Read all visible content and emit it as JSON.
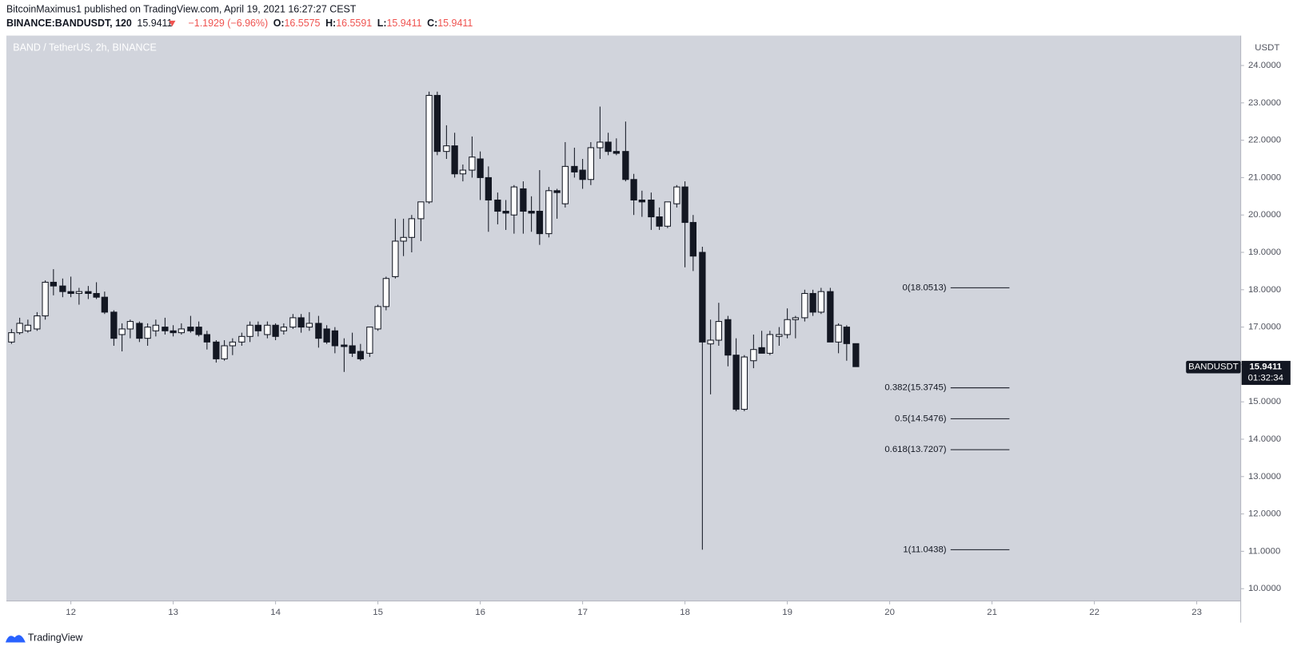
{
  "header": {
    "published": "BitcoinMaximus1 published on TradingView.com, April 19, 2021 16:27:27 CEST",
    "symbol": "BINANCE:BANDUSDT, 120",
    "change": "−1.1929 (−6.96%)",
    "o": "O:",
    "h": "H:",
    "l": "L:",
    "c": "C:"
  },
  "footer": {
    "brand": "TradingView"
  },
  "chart_data": {
    "type": "candlestick",
    "title": "BAND / TetherUS, 2h, BINANCE",
    "y_axis_label": "USDT",
    "ticker": "BANDUSDT",
    "countdown": "01:32:34",
    "xlim": [
      11.37,
      23.43
    ],
    "xticks": [
      12,
      13,
      14,
      15,
      16,
      17,
      18,
      19,
      20,
      21,
      22,
      23
    ],
    "ylim": [
      9.67,
      24.8
    ],
    "yticks": [
      {
        "value": 10,
        "label": "10.0000"
      },
      {
        "value": 11,
        "label": "11.0000"
      },
      {
        "value": 12,
        "label": "12.0000"
      },
      {
        "value": 13,
        "label": "13.0000"
      },
      {
        "value": 14,
        "label": "14.0000"
      },
      {
        "value": 15,
        "label": "15.0000"
      },
      {
        "value": 16,
        "label": "16.0000"
      },
      {
        "value": 17,
        "label": "17.0000"
      },
      {
        "value": 18,
        "label": "18.0000"
      },
      {
        "value": 19,
        "label": "19.0000"
      },
      {
        "value": 20,
        "label": "20.0000"
      },
      {
        "value": 21,
        "label": "21.0000"
      },
      {
        "value": 22,
        "label": "22.0000"
      },
      {
        "value": 23,
        "label": "23.0000"
      },
      {
        "value": 24,
        "label": "24.0000"
      }
    ],
    "up_color": "#ffffff",
    "down_color": "#131722",
    "fib_levels": [
      {
        "value": 18.0513,
        "label": "0(18.0513)"
      },
      {
        "value": 15.3745,
        "label": "0.382(15.3745)"
      },
      {
        "value": 14.5476,
        "label": "0.5(14.5476)"
      },
      {
        "value": 13.7207,
        "label": "0.618(13.7207)"
      },
      {
        "value": 11.0438,
        "label": "1(11.0438)"
      }
    ],
    "x": [
      11.42,
      11.5,
      11.58,
      11.67,
      11.75,
      11.83,
      11.92,
      12,
      12.08,
      12.17,
      12.25,
      12.33,
      12.42,
      12.5,
      12.58,
      12.67,
      12.75,
      12.83,
      12.92,
      13,
      13.08,
      13.17,
      13.25,
      13.33,
      13.42,
      13.5,
      13.58,
      13.67,
      13.75,
      13.83,
      13.92,
      14,
      14.08,
      14.17,
      14.25,
      14.33,
      14.42,
      14.5,
      14.58,
      14.67,
      14.75,
      14.83,
      14.92,
      15,
      15.08,
      15.17,
      15.25,
      15.33,
      15.42,
      15.5,
      15.58,
      15.67,
      15.75,
      15.83,
      15.92,
      16,
      16.08,
      16.17,
      16.25,
      16.33,
      16.42,
      16.5,
      16.58,
      16.67,
      16.75,
      16.83,
      16.92,
      17,
      17.08,
      17.17,
      17.25,
      17.33,
      17.42,
      17.5,
      17.58,
      17.67,
      17.75,
      17.83,
      17.92,
      18,
      18.08,
      18.17,
      18.25,
      18.33,
      18.42,
      18.5,
      18.58,
      18.67,
      18.75,
      18.83,
      18.92,
      19,
      19.08,
      19.17,
      19.25,
      19.33,
      19.42,
      19.5,
      19.58,
      19.67
    ],
    "candles": [
      [
        16.6,
        16.95,
        16.55,
        16.85
      ],
      [
        16.85,
        17.25,
        16.8,
        17.1
      ],
      [
        16.9,
        17.2,
        16.85,
        17.05
      ],
      [
        16.95,
        17.4,
        16.9,
        17.3
      ],
      [
        17.3,
        18.25,
        17.2,
        18.2
      ],
      [
        18.2,
        18.55,
        17.85,
        18.1
      ],
      [
        18.1,
        18.3,
        17.8,
        17.95
      ],
      [
        17.95,
        18.35,
        17.8,
        17.9
      ],
      [
        17.9,
        18.05,
        17.6,
        17.95
      ],
      [
        17.95,
        18.1,
        17.75,
        17.9
      ],
      [
        17.9,
        18.2,
        17.75,
        17.8
      ],
      [
        17.8,
        17.95,
        17.35,
        17.4
      ],
      [
        17.4,
        17.45,
        16.5,
        16.7
      ],
      [
        16.8,
        17.1,
        16.35,
        16.95
      ],
      [
        16.95,
        17.2,
        16.7,
        17.15
      ],
      [
        17.1,
        17.15,
        16.6,
        16.7
      ],
      [
        16.7,
        17.1,
        16.5,
        17.0
      ],
      [
        16.9,
        17.2,
        16.75,
        17.05
      ],
      [
        17.0,
        17.25,
        16.8,
        16.9
      ],
      [
        16.9,
        17.05,
        16.75,
        16.85
      ],
      [
        16.85,
        17.1,
        16.8,
        16.95
      ],
      [
        17.0,
        17.3,
        16.85,
        16.9
      ],
      [
        17.0,
        17.15,
        16.75,
        16.8
      ],
      [
        16.8,
        16.9,
        16.4,
        16.6
      ],
      [
        16.6,
        16.65,
        16.05,
        16.15
      ],
      [
        16.15,
        16.65,
        16.1,
        16.5
      ],
      [
        16.5,
        16.7,
        16.25,
        16.6
      ],
      [
        16.6,
        16.85,
        16.5,
        16.75
      ],
      [
        16.75,
        17.15,
        16.6,
        17.05
      ],
      [
        17.05,
        17.15,
        16.75,
        16.9
      ],
      [
        16.8,
        17.15,
        16.7,
        17.05
      ],
      [
        17.05,
        17.1,
        16.65,
        16.75
      ],
      [
        16.9,
        17.1,
        16.8,
        17.0
      ],
      [
        17.0,
        17.35,
        16.95,
        17.25
      ],
      [
        17.25,
        17.35,
        16.85,
        17.0
      ],
      [
        17.0,
        17.4,
        16.9,
        17.1
      ],
      [
        17.1,
        17.3,
        16.45,
        16.7
      ],
      [
        16.95,
        17.05,
        16.55,
        16.6
      ],
      [
        16.9,
        17.0,
        16.3,
        16.5
      ],
      [
        16.52,
        16.7,
        15.8,
        16.48
      ],
      [
        16.5,
        16.85,
        16.2,
        16.3
      ],
      [
        16.35,
        16.55,
        16.1,
        16.15
      ],
      [
        16.3,
        17.0,
        16.2,
        17.0
      ],
      [
        16.95,
        17.6,
        16.9,
        17.55
      ],
      [
        17.55,
        18.35,
        17.45,
        18.3
      ],
      [
        18.35,
        19.9,
        18.3,
        19.3
      ],
      [
        19.3,
        19.9,
        18.9,
        19.4
      ],
      [
        19.4,
        20.0,
        19.0,
        19.9
      ],
      [
        19.9,
        20.35,
        19.3,
        20.35
      ],
      [
        20.35,
        23.3,
        20.3,
        23.2
      ],
      [
        23.2,
        23.3,
        21.6,
        21.7
      ],
      [
        21.7,
        22.4,
        21.5,
        21.85
      ],
      [
        21.85,
        22.2,
        21.0,
        21.1
      ],
      [
        21.1,
        21.35,
        20.9,
        21.2
      ],
      [
        21.2,
        22.1,
        21.0,
        21.55
      ],
      [
        21.5,
        21.7,
        20.4,
        21.0
      ],
      [
        21.0,
        21.3,
        19.55,
        20.4
      ],
      [
        20.4,
        20.6,
        19.75,
        20.1
      ],
      [
        20.1,
        20.4,
        19.6,
        20.05
      ],
      [
        20.0,
        20.8,
        19.5,
        20.75
      ],
      [
        20.7,
        20.9,
        19.5,
        20.1
      ],
      [
        20.1,
        20.5,
        19.55,
        20.05
      ],
      [
        20.1,
        21.2,
        19.2,
        19.5
      ],
      [
        19.5,
        20.75,
        19.4,
        20.65
      ],
      [
        20.65,
        20.7,
        19.9,
        20.6
      ],
      [
        20.3,
        21.95,
        20.2,
        21.3
      ],
      [
        21.3,
        21.8,
        21.0,
        21.15
      ],
      [
        21.2,
        21.5,
        20.7,
        20.95
      ],
      [
        20.95,
        21.95,
        20.8,
        21.8
      ],
      [
        21.8,
        22.9,
        21.5,
        21.95
      ],
      [
        21.95,
        22.2,
        21.6,
        21.7
      ],
      [
        21.7,
        22.05,
        21.6,
        21.65
      ],
      [
        21.7,
        22.5,
        20.9,
        20.95
      ],
      [
        20.95,
        21.1,
        20.0,
        20.4
      ],
      [
        20.4,
        20.65,
        19.95,
        20.35
      ],
      [
        20.4,
        20.6,
        19.6,
        19.95
      ],
      [
        19.95,
        20.2,
        19.6,
        19.7
      ],
      [
        19.7,
        20.35,
        19.65,
        20.35
      ],
      [
        20.3,
        20.8,
        20.2,
        20.75
      ],
      [
        20.75,
        20.9,
        18.6,
        19.8
      ],
      [
        19.8,
        20.0,
        18.5,
        18.9
      ],
      [
        19.0,
        19.15,
        11.0438,
        16.6
      ],
      [
        16.55,
        17.2,
        15.2,
        16.65
      ],
      [
        16.65,
        17.65,
        16.5,
        17.15
      ],
      [
        17.2,
        17.3,
        15.95,
        16.25
      ],
      [
        16.25,
        16.7,
        14.75,
        14.8
      ],
      [
        14.8,
        16.25,
        14.75,
        16.2
      ],
      [
        16.1,
        16.8,
        15.9,
        16.4
      ],
      [
        16.45,
        16.9,
        16.3,
        16.3
      ],
      [
        16.3,
        16.9,
        16.25,
        16.8
      ],
      [
        16.75,
        17.0,
        16.5,
        16.8
      ],
      [
        16.8,
        17.5,
        16.7,
        17.2
      ],
      [
        17.2,
        17.3,
        16.7,
        17.25
      ],
      [
        17.25,
        18.0,
        17.15,
        17.9
      ],
      [
        17.9,
        18.0,
        17.3,
        17.4
      ],
      [
        17.4,
        18.05,
        17.35,
        17.95
      ],
      [
        17.95,
        18.05,
        16.6,
        16.6
      ],
      [
        16.6,
        17.1,
        16.3,
        17.05
      ],
      [
        17.0,
        17.05,
        16.1,
        16.5575
      ],
      [
        16.5575,
        16.5591,
        15.9411,
        15.9411
      ]
    ]
  }
}
